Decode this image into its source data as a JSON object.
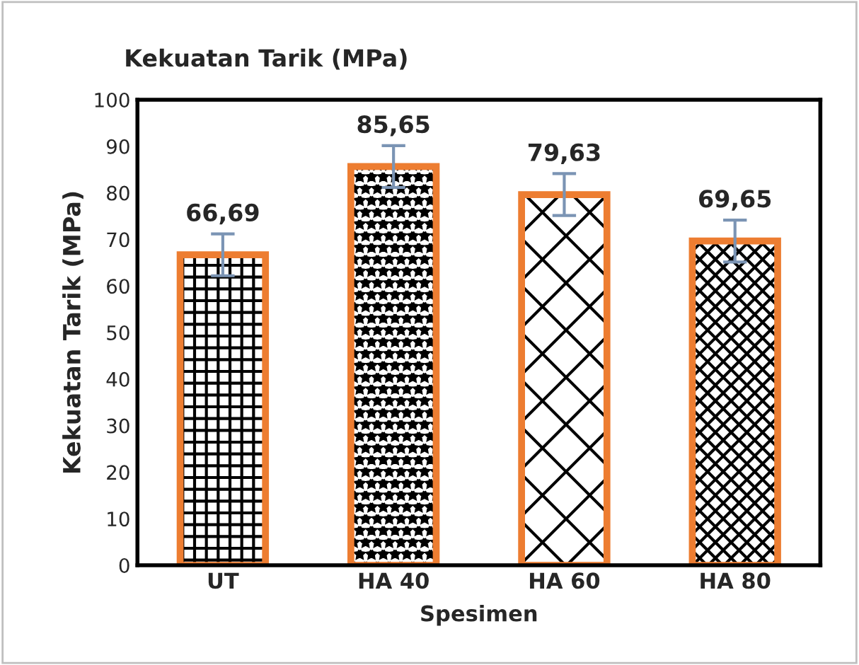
{
  "chart_data": {
    "type": "bar",
    "title": "Kekuatan Tarik (MPa)",
    "xlabel": "Spesimen",
    "ylabel": "Kekuatan Tarik (MPa)",
    "categories": [
      "UT",
      "HA 40",
      "HA 60",
      "HA 80"
    ],
    "values": [
      66.69,
      85.65,
      79.63,
      69.65
    ],
    "value_labels": [
      "66,69",
      "85,65",
      "79,63",
      "69,65"
    ],
    "errors": [
      4.5,
      4.5,
      4.5,
      4.5
    ],
    "color": "#ed7d31",
    "ylim": [
      0,
      100
    ],
    "yticks": [
      0,
      10,
      20,
      30,
      40,
      50,
      60,
      70,
      80,
      90,
      100
    ],
    "grid": false,
    "legend": false
  }
}
